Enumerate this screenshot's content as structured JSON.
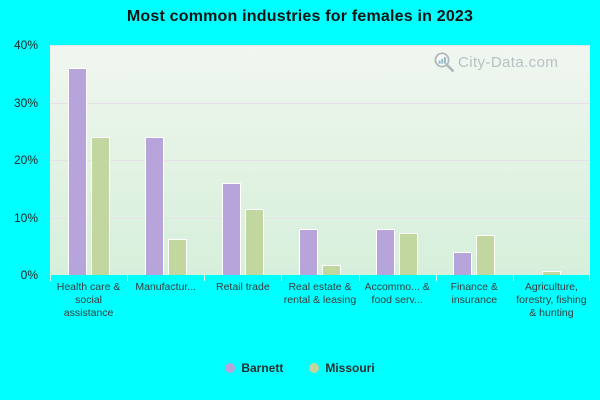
{
  "chart_data": {
    "type": "bar",
    "title": "Most common industries for females in 2023",
    "categories": [
      "Health care & social assistance",
      "Manufactur...",
      "Retail trade",
      "Real estate & rental & leasing",
      "Accommo... & food serv...",
      "Finance & insurance",
      "Agriculture, forestry, fishing & hunting"
    ],
    "series": [
      {
        "name": "Barnett",
        "color": "#b7a4db",
        "values": [
          36,
          24,
          16,
          8,
          8,
          4,
          0
        ]
      },
      {
        "name": "Missouri",
        "color": "#c2d69f",
        "values": [
          24,
          6.2,
          11.5,
          1.8,
          7.3,
          7,
          0.7
        ]
      }
    ],
    "ylim": [
      0,
      40
    ],
    "yticks": [
      "0%",
      "10%",
      "20%",
      "30%",
      "40%"
    ],
    "xlabel": "",
    "ylabel": "",
    "grid": true,
    "legend_position": "bottom",
    "background_color": "#00ffff",
    "plot_gradient_top": "#f1f6f0",
    "plot_gradient_bottom": "#d6efdb",
    "gridline_color": "#e7dee9",
    "bar_border_color": "#ffffff"
  },
  "watermark": {
    "text": "City-Data.com"
  }
}
